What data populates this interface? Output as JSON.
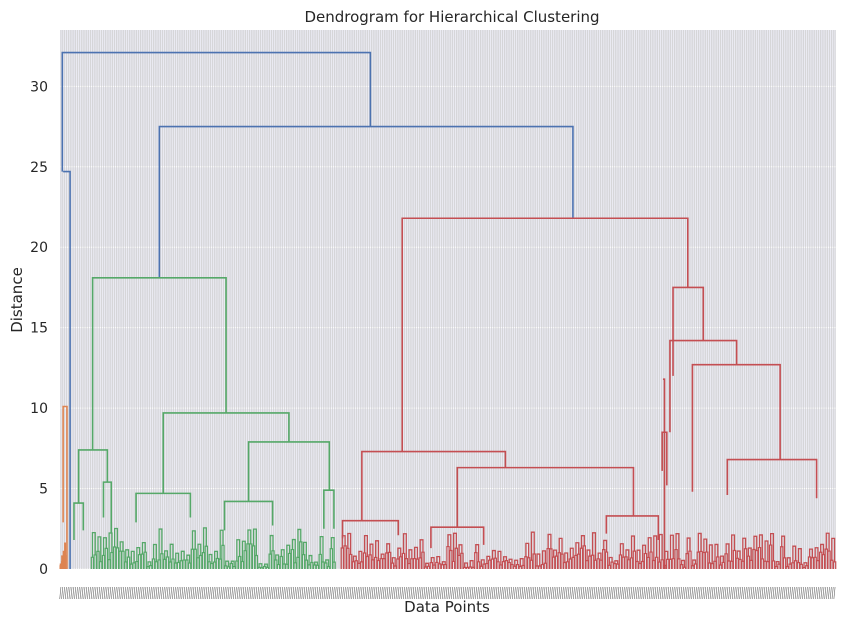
{
  "chart_data": {
    "type": "dendrogram",
    "title": "Dendrogram for Hierarchical Clustering",
    "xlabel": "Data Points",
    "ylabel": "Distance",
    "ylim": [
      0,
      33.5
    ],
    "y_ticks": [
      0,
      5,
      10,
      15,
      20,
      25,
      30
    ],
    "grid": true,
    "legend": "none",
    "colors": {
      "root_links": "#4c72b0",
      "cluster_orange": "#dd8452",
      "cluster_green": "#55a868",
      "cluster_red": "#c44e52",
      "plot_background": "#eaeaf2",
      "grid": "#ffffff"
    },
    "leaf_count": 420,
    "clusters": [
      {
        "color": "cluster_orange",
        "leaf_range": [
          0,
          0.0075
        ],
        "top_merge_height": 10.1
      },
      {
        "color": "cluster_green",
        "leaf_range": [
          0.04,
          0.355
        ],
        "top_merge_height": 18.1
      },
      {
        "color": "cluster_red",
        "leaf_range": [
          0.362,
          1.0
        ],
        "top_merge_height": 21.8
      }
    ],
    "merges": [
      {
        "color": "root_links",
        "left": [
          0.004,
          24.7
        ],
        "right": [
          0.013,
          0
        ],
        "height": 24.7
      },
      {
        "color": "root_links",
        "left": [
          0.003,
          24.7
        ],
        "right": [
          0.4,
          27.5
        ],
        "height": 32.1
      },
      {
        "color": "root_links",
        "left": [
          0.128,
          18.1
        ],
        "right": [
          0.661,
          21.8
        ],
        "height": 27.5
      },
      {
        "color": "cluster_orange",
        "left": [
          0.004,
          2.9
        ],
        "right": [
          0.009,
          0
        ],
        "height": 10.1
      },
      {
        "color": "cluster_green",
        "left": [
          0.042,
          7.4
        ],
        "right": [
          0.214,
          9.7
        ],
        "height": 18.1
      },
      {
        "color": "cluster_green",
        "left": [
          0.024,
          4.1
        ],
        "right": [
          0.061,
          5.4
        ],
        "height": 7.4
      },
      {
        "color": "cluster_green",
        "left": [
          0.133,
          4.7
        ],
        "right": [
          0.295,
          7.9
        ],
        "height": 9.7
      },
      {
        "color": "cluster_green",
        "left": [
          0.098,
          2.9
        ],
        "right": [
          0.168,
          3.2
        ],
        "height": 4.7
      },
      {
        "color": "cluster_green",
        "left": [
          0.243,
          4.2
        ],
        "right": [
          0.347,
          4.9
        ],
        "height": 7.9
      },
      {
        "color": "cluster_green",
        "left": [
          0.212,
          2.4
        ],
        "right": [
          0.274,
          2.7
        ],
        "height": 4.2
      },
      {
        "color": "cluster_green",
        "left": [
          0.34,
          2.5
        ],
        "right": [
          0.353,
          2.5
        ],
        "height": 4.9
      },
      {
        "color": "cluster_green",
        "left": [
          0.018,
          1.8
        ],
        "right": [
          0.03,
          2.4
        ],
        "height": 4.1
      },
      {
        "color": "cluster_green",
        "left": [
          0.056,
          3.2
        ],
        "right": [
          0.066,
          2.2
        ],
        "height": 5.4
      },
      {
        "color": "cluster_red",
        "left": [
          0.441,
          7.3
        ],
        "right": [
          0.809,
          17.5
        ],
        "height": 21.8
      },
      {
        "color": "cluster_red",
        "left": [
          0.389,
          3.0
        ],
        "right": [
          0.574,
          6.3
        ],
        "height": 7.3
      },
      {
        "color": "cluster_red",
        "left": [
          0.512,
          2.6
        ],
        "right": [
          0.739,
          3.3
        ],
        "height": 6.3
      },
      {
        "color": "cluster_red",
        "left": [
          0.79,
          12.0
        ],
        "right": [
          0.829,
          14.2
        ],
        "height": 17.5
      },
      {
        "color": "cluster_red",
        "left": [
          0.786,
          8.5
        ],
        "right": [
          0.872,
          12.7
        ],
        "height": 14.2
      },
      {
        "color": "cluster_red",
        "left": [
          0.815,
          4.8
        ],
        "right": [
          0.928,
          6.8
        ],
        "height": 12.7
      },
      {
        "color": "cluster_red",
        "left": [
          0.86,
          4.6
        ],
        "right": [
          0.975,
          4.4
        ],
        "height": 6.8
      },
      {
        "color": "cluster_red",
        "left": [
          0.777,
          11.8
        ],
        "right": [
          0.779,
          0
        ],
        "height": 11.8
      },
      {
        "color": "cluster_red",
        "left": [
          0.776,
          6.1
        ],
        "right": [
          0.782,
          5.2
        ],
        "height": 8.5
      },
      {
        "color": "cluster_red",
        "left": [
          0.364,
          1.9
        ],
        "right": [
          0.436,
          2.1
        ],
        "height": 3.0
      },
      {
        "color": "cluster_red",
        "left": [
          0.478,
          1.3
        ],
        "right": [
          0.546,
          1.5
        ],
        "height": 2.6
      },
      {
        "color": "cluster_red",
        "left": [
          0.704,
          2.2
        ],
        "right": [
          0.771,
          1.8
        ],
        "height": 3.3
      }
    ]
  }
}
